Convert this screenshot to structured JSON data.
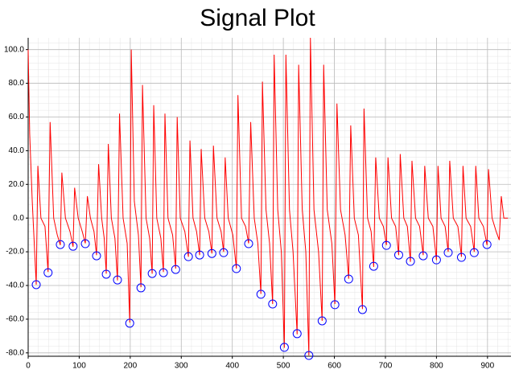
{
  "chart_data": {
    "type": "line",
    "title": "Signal Plot",
    "xlim": [
      0,
      946
    ],
    "ylim": [
      -82,
      107
    ],
    "xticks": [
      0,
      100,
      200,
      300,
      400,
      500,
      600,
      700,
      800,
      900
    ],
    "yticks": [
      {
        "value": -80,
        "label": "-80.0"
      },
      {
        "value": -60,
        "label": "-60.0"
      },
      {
        "value": -40,
        "label": "-40.0"
      },
      {
        "value": -20,
        "label": "-20.0"
      },
      {
        "value": 0,
        "label": "0.0"
      },
      {
        "value": 20,
        "label": "20.0"
      },
      {
        "value": 40,
        "label": "40.0"
      },
      {
        "value": 60,
        "label": "60.0"
      },
      {
        "value": 80,
        "label": "80.0"
      },
      {
        "value": 100,
        "label": "100.0"
      }
    ],
    "grid": true,
    "minor_grid": true,
    "series": [
      {
        "style": "line",
        "color": "#ff0000",
        "x": [
          0,
          3,
          8,
          15.8,
          19,
          25,
          33,
          39,
          43,
          50,
          57,
          63,
          66,
          73,
          82,
          88,
          91,
          98,
          106,
          112,
          116,
          122,
          129,
          134,
          138,
          144,
          149,
          153,
          157,
          163,
          170,
          175,
          179,
          186,
          194,
          199,
          202,
          208,
          216,
          221,
          224,
          231,
          238,
          243,
          246,
          252,
          260,
          265,
          268,
          274,
          283,
          289,
          292,
          298,
          307,
          314,
          317,
          323,
          330,
          336,
          339,
          346,
          354,
          360,
          363,
          370,
          378,
          383,
          386,
          392,
          401,
          408,
          411,
          418,
          426,
          432,
          436,
          443,
          450,
          456,
          459,
          466,
          473,
          479,
          482,
          489,
          496,
          502,
          505,
          512,
          519,
          527,
          530,
          537,
          544,
          550,
          553,
          560,
          569,
          576,
          579,
          586,
          595,
          601,
          605,
          612,
          621,
          628,
          632,
          639,
          647,
          655,
          658,
          665,
          672,
          677,
          681,
          688,
          696,
          702,
          705,
          712,
          720,
          726,
          729,
          736,
          743,
          749,
          752,
          759,
          767,
          774,
          777,
          784,
          793,
          800,
          803,
          809,
          817,
          823,
          826,
          833,
          842,
          849,
          852,
          858,
          867,
          874,
          877,
          883,
          892,
          899,
          902,
          909,
          917,
          923,
          927,
          932,
          940
        ],
        "values": [
          100,
          50,
          10,
          -39.5,
          31,
          0,
          -5,
          -32,
          57,
          0,
          -10,
          -16,
          27,
          0,
          -8,
          -17,
          18,
          0,
          -8,
          -15,
          13,
          0,
          -8,
          -22,
          32,
          0,
          -12,
          -33,
          44,
          0,
          -12,
          -37,
          62,
          0,
          -15,
          -62,
          100,
          10,
          -10,
          -41,
          79,
          0,
          -12,
          -33,
          67,
          0,
          -12,
          -32,
          62,
          0,
          -10,
          -30,
          60,
          0,
          -8,
          -23,
          46,
          0,
          -8,
          -22,
          41,
          0,
          -8,
          -21,
          43,
          0,
          -8,
          -20,
          36,
          0,
          -10,
          -30,
          73,
          0,
          -5,
          -15,
          57,
          0,
          -15,
          -45,
          81,
          5,
          -15,
          -51,
          97,
          5,
          -20,
          -77,
          97,
          5,
          -20,
          -69,
          91,
          5,
          -20,
          -81.5,
          107,
          5,
          -20,
          -61,
          91,
          5,
          -15,
          -51,
          68,
          5,
          -10,
          -36,
          55,
          0,
          -10,
          -54,
          65,
          0,
          -8,
          -29,
          36,
          0,
          -5,
          -16,
          36,
          0,
          -5,
          -22,
          38,
          0,
          -5,
          -26,
          34,
          0,
          -5,
          -22,
          31,
          0,
          -5,
          -25,
          31,
          0,
          -5,
          -20,
          34,
          0,
          -5,
          -23,
          31,
          0,
          -5,
          -20,
          31,
          0,
          -5,
          -16,
          29,
          0,
          -8,
          -13,
          13,
          0,
          0
        ]
      },
      {
        "style": "markers",
        "color": "#0000ff",
        "x": [
          15.8,
          39,
          63,
          88,
          112,
          134,
          153,
          175,
          199,
          221,
          243,
          265,
          289,
          314,
          336,
          360,
          383,
          408,
          432,
          456,
          479,
          502,
          527,
          550,
          576,
          601,
          628,
          655,
          677,
          702,
          726,
          749,
          774,
          800,
          823,
          849,
          874,
          899
        ],
        "values": [
          -39.5,
          -32.4,
          -15.7,
          -16.7,
          -15.2,
          -22.4,
          -33.3,
          -36.7,
          -62.4,
          -41.4,
          -32.9,
          -32.4,
          -30.5,
          -22.9,
          -21.9,
          -21,
          -20.5,
          -30,
          -15.2,
          -45.2,
          -51,
          -76.7,
          -68.6,
          -81.5,
          -61,
          -51.4,
          -36.2,
          -54.3,
          -28.6,
          -16.2,
          -21.9,
          -25.7,
          -22.4,
          -24.8,
          -20.5,
          -23.3,
          -20.5,
          -15.7
        ]
      }
    ]
  }
}
